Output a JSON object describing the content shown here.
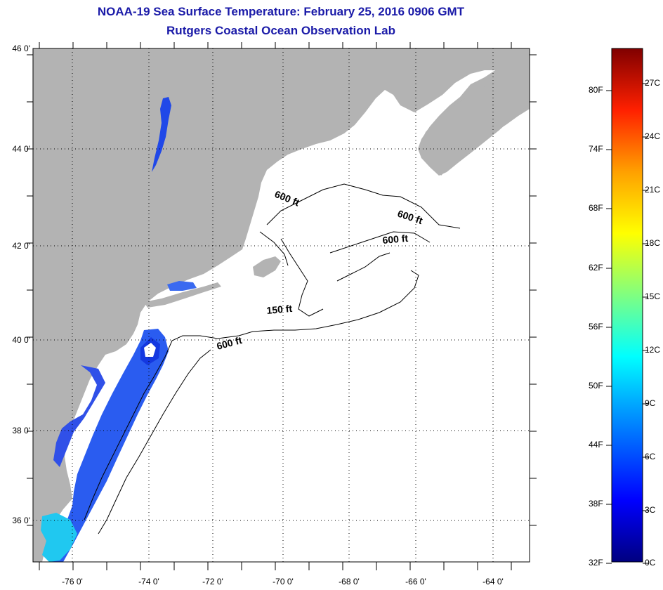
{
  "title": "NOAA-19 Sea Surface Temperature:  February 25, 2016 0906 GMT",
  "subtitle": "Rutgers Coastal Ocean Observation Lab",
  "map": {
    "lon_ticks": [
      "-76 0'",
      "-74 0'",
      "-72 0'",
      "-70 0'",
      "-68 0'",
      "-66 0'",
      "-64 0'"
    ],
    "lat_ticks": [
      "46 0'",
      "44 0'",
      "42 0'",
      "40 0'",
      "38 0'",
      "36 0'"
    ],
    "contour_labels": [
      "600 ft",
      "600 ft",
      "600 ft",
      "150 ft",
      "600 ft"
    ],
    "colors": {
      "land": "#b3b3b3",
      "ocean": "#ffffff",
      "contour": "#000000",
      "grid": "#000000"
    }
  },
  "colorbar": {
    "fahrenheit": [
      "80F",
      "74F",
      "68F",
      "62F",
      "56F",
      "50F",
      "44F",
      "38F",
      "32F"
    ],
    "celsius": [
      "27C",
      "24C",
      "21C",
      "18C",
      "15C",
      "12C",
      "9C",
      "6C",
      "3C",
      "0C"
    ],
    "colors": [
      "#000080",
      "#0000ff",
      "#00a0ff",
      "#00ffff",
      "#80ff80",
      "#ffff00",
      "#ffa000",
      "#ff2000",
      "#800000"
    ]
  }
}
